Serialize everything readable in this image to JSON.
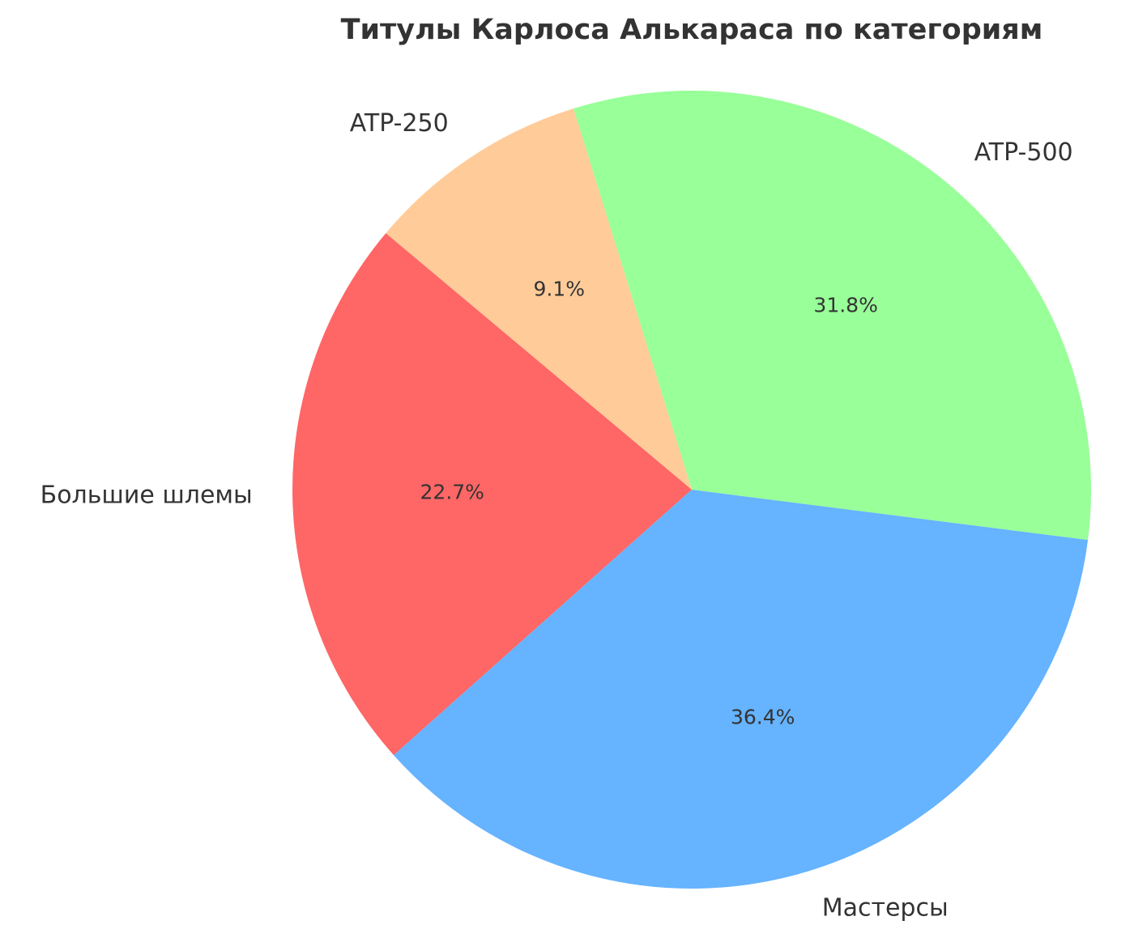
{
  "chart_data": {
    "type": "pie",
    "title": "Титулы Карлоса Алькараса по категориям",
    "categories": [
      "Большие шлемы",
      "Мастерсы",
      "ATP-500",
      "ATP-250"
    ],
    "values": [
      22.7,
      36.4,
      31.8,
      9.1
    ],
    "value_labels": [
      "22.7%",
      "36.4%",
      "31.8%",
      "9.1%"
    ],
    "colors": [
      "#ff6666",
      "#66b3ff",
      "#99ff99",
      "#ffcc99"
    ],
    "start_angle": 140
  }
}
